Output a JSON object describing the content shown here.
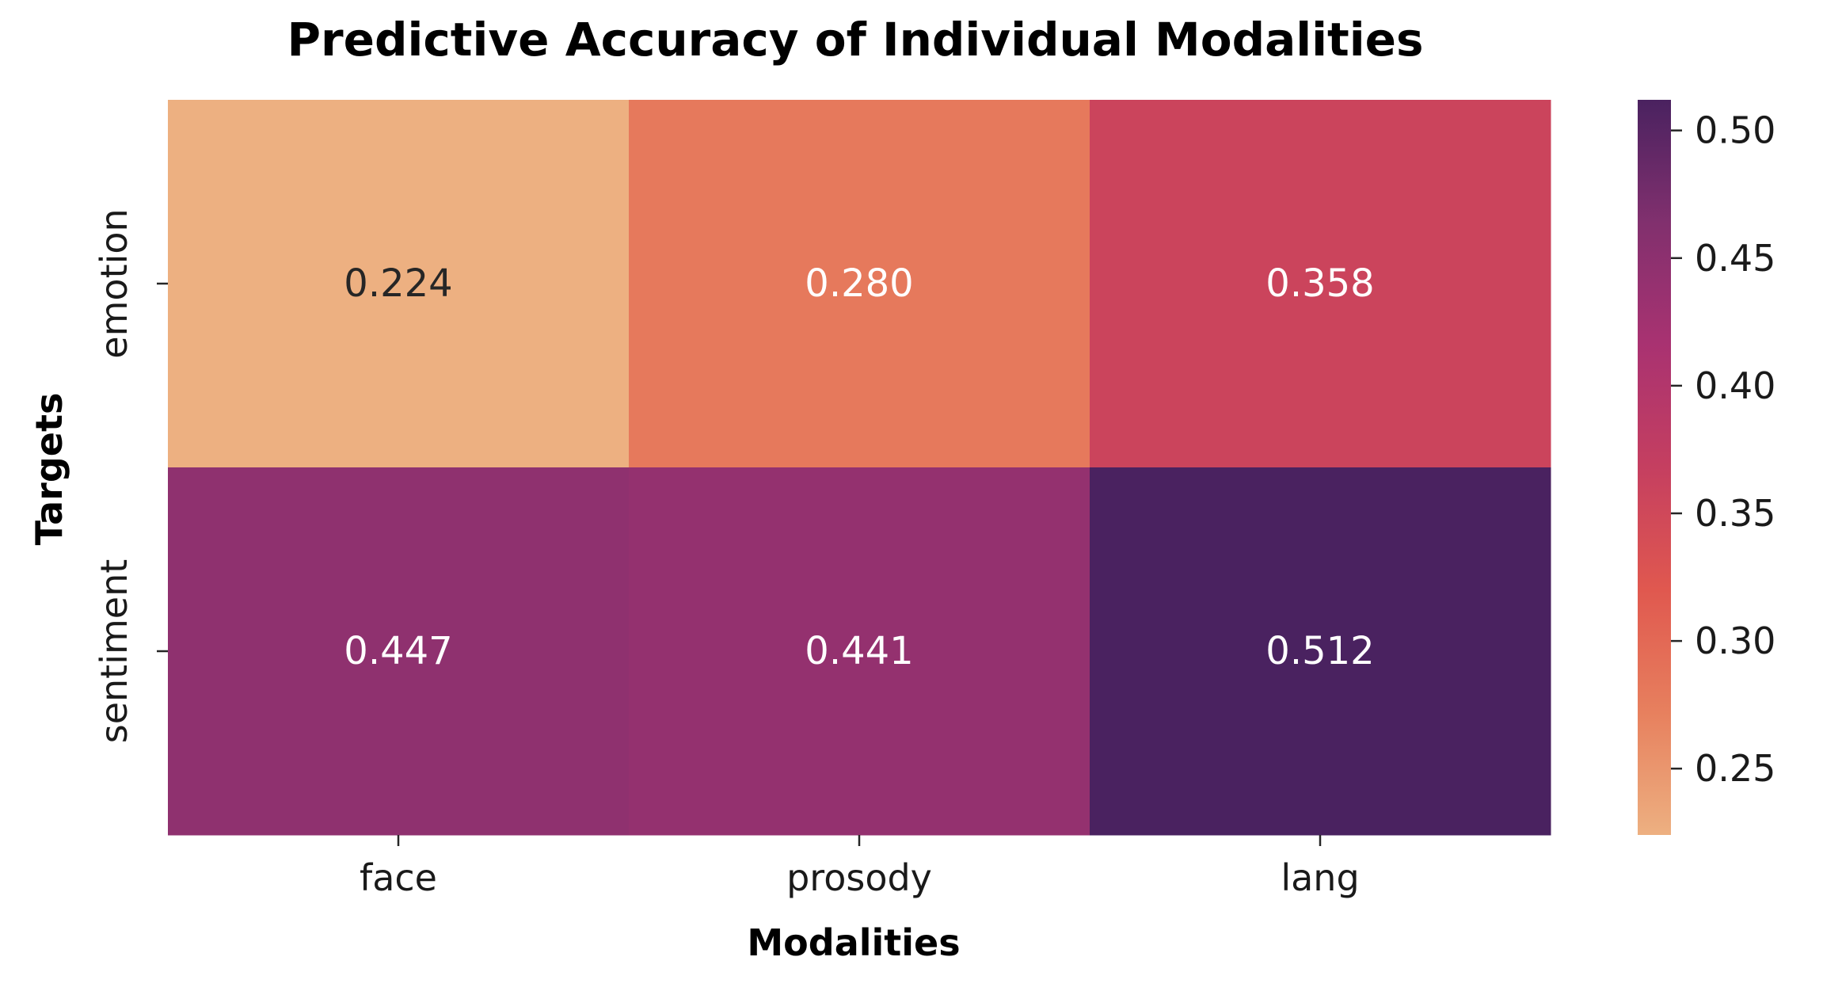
{
  "chart_data": {
    "type": "heatmap",
    "title": "Predictive Accuracy of Individual Modalities",
    "xlabel": "Modalities",
    "ylabel": "Targets",
    "x_categories": [
      "face",
      "prosody",
      "lang"
    ],
    "y_categories": [
      "emotion",
      "sentiment"
    ],
    "values": [
      [
        0.224,
        0.28,
        0.358
      ],
      [
        0.447,
        0.441,
        0.512
      ]
    ],
    "value_format": "3 decimals",
    "colormap": "flare",
    "colorbar": {
      "range": [
        0.224,
        0.512
      ],
      "ticks": [
        0.25,
        0.3,
        0.35,
        0.4,
        0.45,
        0.5
      ],
      "tick_labels": [
        "0.25",
        "0.30",
        "0.35",
        "0.40",
        "0.45",
        "0.50"
      ]
    },
    "colors": {
      "stops": [
        "#edb081",
        "#e7805e",
        "#e0584f",
        "#c53f60",
        "#a93271",
        "#81306e",
        "#4a2260"
      ],
      "text_dark": "#262626",
      "text_light": "#ffffff"
    }
  }
}
